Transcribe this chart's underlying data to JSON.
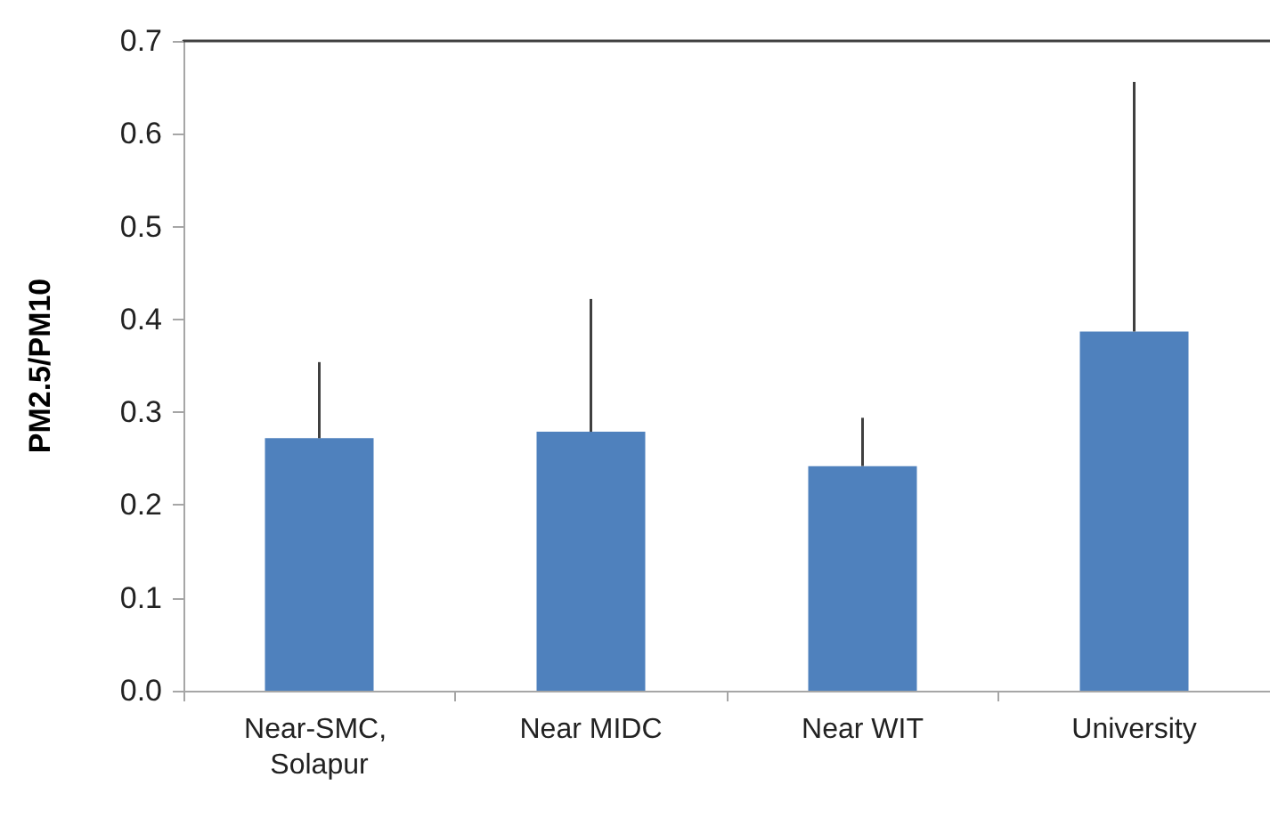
{
  "chart_data": {
    "type": "bar",
    "ylabel": "PM2.5/PM10",
    "categories": [
      "Near-SMC, Solapur",
      "Near MIDC",
      "Near WIT",
      "University"
    ],
    "values": [
      0.272,
      0.279,
      0.242,
      0.387
    ],
    "errors": [
      [
        0.272,
        0.354
      ],
      [
        0.279,
        0.422
      ],
      [
        0.242,
        0.294
      ],
      [
        0.387,
        0.656
      ]
    ],
    "color": "#4f81bd",
    "ylim": [
      0,
      0.7
    ],
    "yticks": [
      {
        "value": 0,
        "label": "0.0"
      },
      0.1,
      0.2,
      0.3,
      0.4,
      0.5,
      0.6,
      0.7
    ],
    "grid": false
  }
}
